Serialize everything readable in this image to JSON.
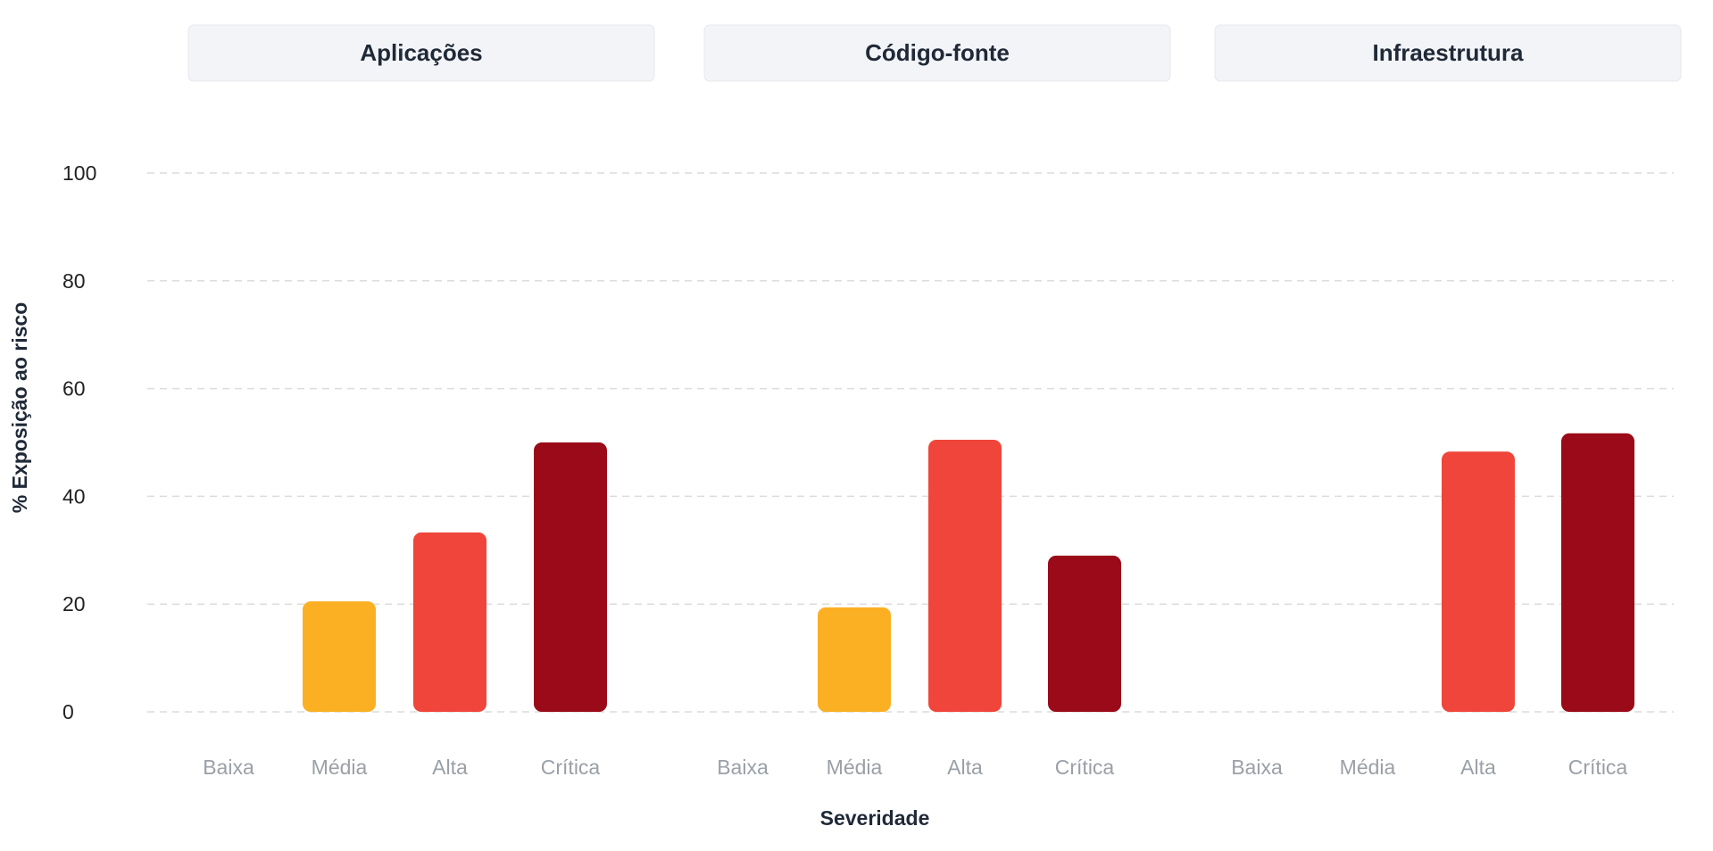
{
  "chart_data": {
    "type": "bar",
    "title": "",
    "xlabel": "Severidade",
    "ylabel": "% Exposição ao risco",
    "ylim": [
      0,
      100
    ],
    "yticks": [
      0,
      20,
      40,
      60,
      80,
      100
    ],
    "grid": true,
    "categories": [
      "Baixa",
      "Média",
      "Alta",
      "Crítica"
    ],
    "colors": {
      "Baixa": "#3b82f6",
      "Média": "#fbb023",
      "Alta": "#f0453a",
      "Crítica": "#9b0a18"
    },
    "facets": [
      {
        "name": "Aplicações",
        "values": [
          0,
          20.5,
          33.3,
          50
        ]
      },
      {
        "name": "Código-fonte",
        "values": [
          0,
          19.4,
          50.5,
          29
        ]
      },
      {
        "name": "Infraestrutura",
        "values": [
          0,
          0,
          48.3,
          51.7
        ]
      }
    ]
  }
}
